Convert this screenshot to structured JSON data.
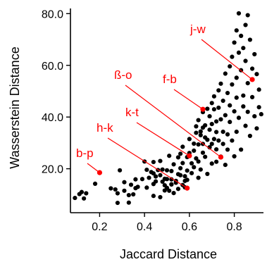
{
  "chart_data": {
    "type": "scatter",
    "title": "",
    "xlabel": "Jaccard Distance",
    "ylabel": "Wasserstein Distance",
    "xlim": [
      0.07,
      0.93
    ],
    "ylim": [
      3,
      82
    ],
    "xticks": [
      0.2,
      0.4,
      0.6,
      0.8
    ],
    "xtick_labels": [
      "0.2",
      "0.4",
      "0.6",
      "0.8"
    ],
    "yticks": [
      20,
      40,
      60,
      80
    ],
    "ytick_labels": [
      "20.0",
      "40.0",
      "60.0",
      "80.0"
    ],
    "grid": false,
    "legend": "none",
    "colors": {
      "points": "#000000",
      "highlight": "#ff0000"
    },
    "points": [
      [
        0.09,
        8.7
      ],
      [
        0.11,
        10.2
      ],
      [
        0.12,
        11.0
      ],
      [
        0.13,
        8.5
      ],
      [
        0.14,
        10.5
      ],
      [
        0.18,
        14.2
      ],
      [
        0.25,
        12.4
      ],
      [
        0.27,
        12.0
      ],
      [
        0.28,
        10.5
      ],
      [
        0.28,
        6.8
      ],
      [
        0.29,
        19.4
      ],
      [
        0.31,
        14.8
      ],
      [
        0.31,
        11.5
      ],
      [
        0.33,
        9.8
      ],
      [
        0.33,
        6.9
      ],
      [
        0.34,
        13.8
      ],
      [
        0.35,
        10.1
      ],
      [
        0.36,
        12.5
      ],
      [
        0.36,
        15.9
      ],
      [
        0.37,
        13.0
      ],
      [
        0.39,
        16.0
      ],
      [
        0.4,
        22.8
      ],
      [
        0.41,
        12.7
      ],
      [
        0.41,
        19.6
      ],
      [
        0.42,
        16.5
      ],
      [
        0.44,
        9.5
      ],
      [
        0.43,
        18.7
      ],
      [
        0.44,
        18.2
      ],
      [
        0.44,
        22.6
      ],
      [
        0.44,
        14.1
      ],
      [
        0.45,
        17.0
      ],
      [
        0.45,
        15.1
      ],
      [
        0.47,
        9.0
      ],
      [
        0.46,
        19.5
      ],
      [
        0.47,
        17.5
      ],
      [
        0.47,
        23.0
      ],
      [
        0.48,
        15.0
      ],
      [
        0.48,
        19.7
      ],
      [
        0.49,
        11.6
      ],
      [
        0.49,
        16.1
      ],
      [
        0.49,
        13.6
      ],
      [
        0.5,
        19.4
      ],
      [
        0.5,
        12.6
      ],
      [
        0.5,
        16.0
      ],
      [
        0.51,
        25.0
      ],
      [
        0.51,
        11.5
      ],
      [
        0.52,
        19.1
      ],
      [
        0.52,
        13.9
      ],
      [
        0.52,
        15.9
      ],
      [
        0.52,
        14.0
      ],
      [
        0.53,
        10.6
      ],
      [
        0.53,
        21.7
      ],
      [
        0.54,
        15.3
      ],
      [
        0.54,
        14.6
      ],
      [
        0.55,
        17.9
      ],
      [
        0.55,
        24.4
      ],
      [
        0.55,
        12.2
      ],
      [
        0.56,
        20.2
      ],
      [
        0.56,
        25.8
      ],
      [
        0.56,
        17.5
      ],
      [
        0.57,
        13.7
      ],
      [
        0.57,
        22.2
      ],
      [
        0.57,
        28.5
      ],
      [
        0.58,
        15.3
      ],
      [
        0.58,
        12.8
      ],
      [
        0.58,
        17.1
      ],
      [
        0.59,
        19.3
      ],
      [
        0.59,
        24.5
      ],
      [
        0.59,
        15.7
      ],
      [
        0.6,
        26.1
      ],
      [
        0.61,
        22.1
      ],
      [
        0.6,
        31.5
      ],
      [
        0.61,
        18.3
      ],
      [
        0.62,
        20.6
      ],
      [
        0.62,
        29.7
      ],
      [
        0.62,
        27.0
      ],
      [
        0.63,
        24.0
      ],
      [
        0.63,
        36.4
      ],
      [
        0.63,
        33.9
      ],
      [
        0.64,
        16.5
      ],
      [
        0.64,
        22.8
      ],
      [
        0.64,
        29.4
      ],
      [
        0.64,
        38.8
      ],
      [
        0.65,
        34.4
      ],
      [
        0.65,
        33.0
      ],
      [
        0.65,
        19.7
      ],
      [
        0.66,
        29.6
      ],
      [
        0.66,
        26.2
      ],
      [
        0.66,
        41.9
      ],
      [
        0.66,
        35.9
      ],
      [
        0.67,
        24.6
      ],
      [
        0.67,
        32.1
      ],
      [
        0.67,
        36.8
      ],
      [
        0.68,
        18.0
      ],
      [
        0.68,
        31.2
      ],
      [
        0.68,
        43.2
      ],
      [
        0.69,
        28.3
      ],
      [
        0.69,
        40.3
      ],
      [
        0.69,
        35.1
      ],
      [
        0.7,
        29.6
      ],
      [
        0.7,
        22.0
      ],
      [
        0.7,
        37.3
      ],
      [
        0.7,
        45.4
      ],
      [
        0.71,
        31.5
      ],
      [
        0.71,
        48.0
      ],
      [
        0.71,
        43.0
      ],
      [
        0.72,
        27.5
      ],
      [
        0.72,
        38.3
      ],
      [
        0.72,
        22.7
      ],
      [
        0.72,
        34.2
      ],
      [
        0.73,
        50.3
      ],
      [
        0.73,
        30.9
      ],
      [
        0.73,
        43.6
      ],
      [
        0.74,
        24.7
      ],
      [
        0.74,
        39.1
      ],
      [
        0.74,
        52.9
      ],
      [
        0.75,
        34.3
      ],
      [
        0.75,
        29.6
      ],
      [
        0.75,
        46.3
      ],
      [
        0.76,
        21.5
      ],
      [
        0.76,
        40.7
      ],
      [
        0.76,
        56.8
      ],
      [
        0.77,
        33.3
      ],
      [
        0.77,
        27.4
      ],
      [
        0.77,
        49.3
      ],
      [
        0.78,
        44.5
      ],
      [
        0.78,
        59.6
      ],
      [
        0.78,
        38.1
      ],
      [
        0.79,
        52.6
      ],
      [
        0.79,
        30.9
      ],
      [
        0.79,
        63.3
      ],
      [
        0.8,
        42.2
      ],
      [
        0.8,
        24.8
      ],
      [
        0.8,
        68.8
      ],
      [
        0.81,
        47.5
      ],
      [
        0.81,
        34.3
      ],
      [
        0.81,
        73.5
      ],
      [
        0.81,
        55.2
      ],
      [
        0.82,
        64.9
      ],
      [
        0.82,
        39.7
      ],
      [
        0.82,
        80.1
      ],
      [
        0.83,
        58.1
      ],
      [
        0.83,
        27.4
      ],
      [
        0.83,
        71.4
      ],
      [
        0.84,
        48.3
      ],
      [
        0.84,
        44.1
      ],
      [
        0.84,
        66.7
      ],
      [
        0.85,
        36.6
      ],
      [
        0.85,
        61.7
      ],
      [
        0.85,
        75.6
      ],
      [
        0.86,
        53.1
      ],
      [
        0.86,
        79.4
      ],
      [
        0.86,
        42.0
      ],
      [
        0.87,
        69.9
      ],
      [
        0.87,
        32.7
      ],
      [
        0.88,
        58.7
      ],
      [
        0.88,
        47.7
      ],
      [
        0.89,
        40.3
      ],
      [
        0.89,
        64.3
      ],
      [
        0.9,
        35.6
      ],
      [
        0.9,
        56.6
      ],
      [
        0.91,
        43.8
      ],
      [
        0.91,
        50.6
      ],
      [
        0.92,
        41.1
      ]
    ],
    "highlights": [
      {
        "label": "b-p",
        "x": 0.2,
        "y": 18.5
      },
      {
        "label": "h-k",
        "x": 0.59,
        "y": 12.5
      },
      {
        "label": "k-t",
        "x": 0.6,
        "y": 25.0
      },
      {
        "label": "ß-o",
        "x": 0.74,
        "y": 24.5
      },
      {
        "label": "f-b",
        "x": 0.66,
        "y": 43.0
      },
      {
        "label": "j-w",
        "x": 0.88,
        "y": 54.5
      }
    ]
  }
}
